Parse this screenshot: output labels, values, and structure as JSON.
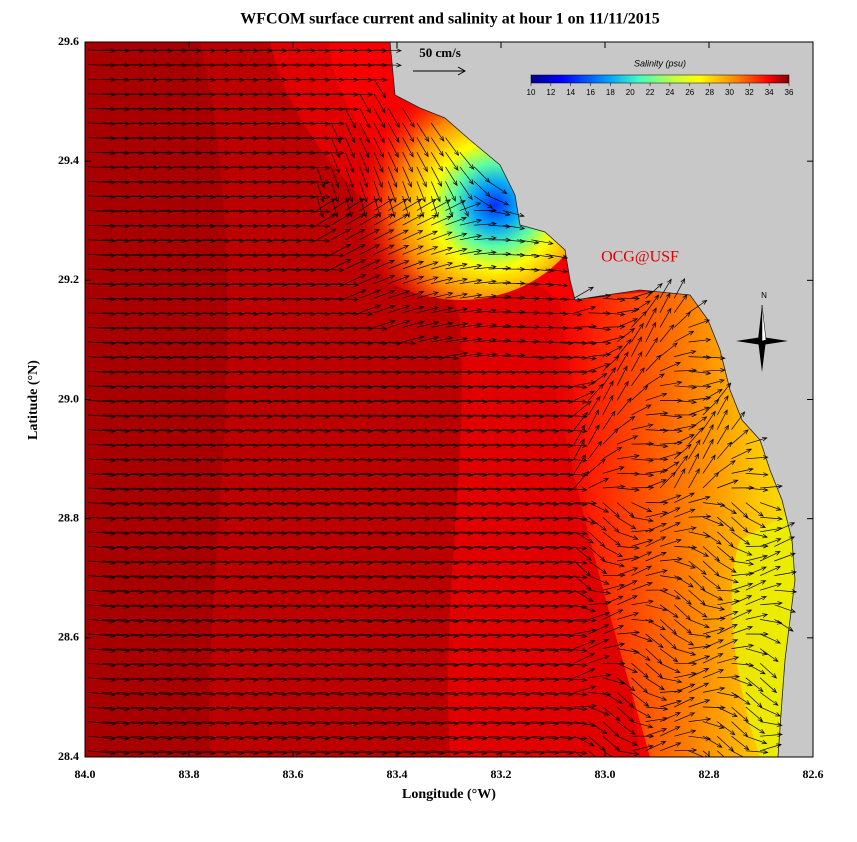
{
  "title": "WFCOM surface current and salinity at hour 1 on 11/11/2015",
  "x_axis": {
    "label": "Longitude (°W)",
    "lim": [
      84.0,
      82.6
    ],
    "ticks": [
      {
        "value": 84.0,
        "label": "84.0"
      },
      {
        "value": 83.8,
        "label": "83.8"
      },
      {
        "value": 83.6,
        "label": "83.6"
      },
      {
        "value": 83.4,
        "label": "83.4"
      },
      {
        "value": 83.2,
        "label": "83.2"
      },
      {
        "value": 83.0,
        "label": "83.0"
      },
      {
        "value": 82.8,
        "label": "82.8"
      },
      {
        "value": 82.6,
        "label": "82.6"
      }
    ]
  },
  "y_axis": {
    "label": "Latitude (°N)",
    "lim": [
      28.4,
      29.6
    ],
    "ticks": [
      {
        "value": 28.4,
        "label": "28.4"
      },
      {
        "value": 28.6,
        "label": "28.6"
      },
      {
        "value": 28.8,
        "label": "28.8"
      },
      {
        "value": 29.0,
        "label": "29.0"
      },
      {
        "value": 29.2,
        "label": "29.2"
      },
      {
        "value": 29.4,
        "label": "29.4"
      },
      {
        "value": 29.6,
        "label": "29.6"
      }
    ]
  },
  "colorbar": {
    "title": "Salinity (psu)",
    "lim": [
      10,
      36
    ],
    "ticks": [
      10,
      12,
      14,
      16,
      18,
      20,
      22,
      24,
      26,
      28,
      30,
      32,
      34,
      36
    ]
  },
  "scale_label": "50 cm/s",
  "watermark": "OCG@USF",
  "compass": "N"
}
